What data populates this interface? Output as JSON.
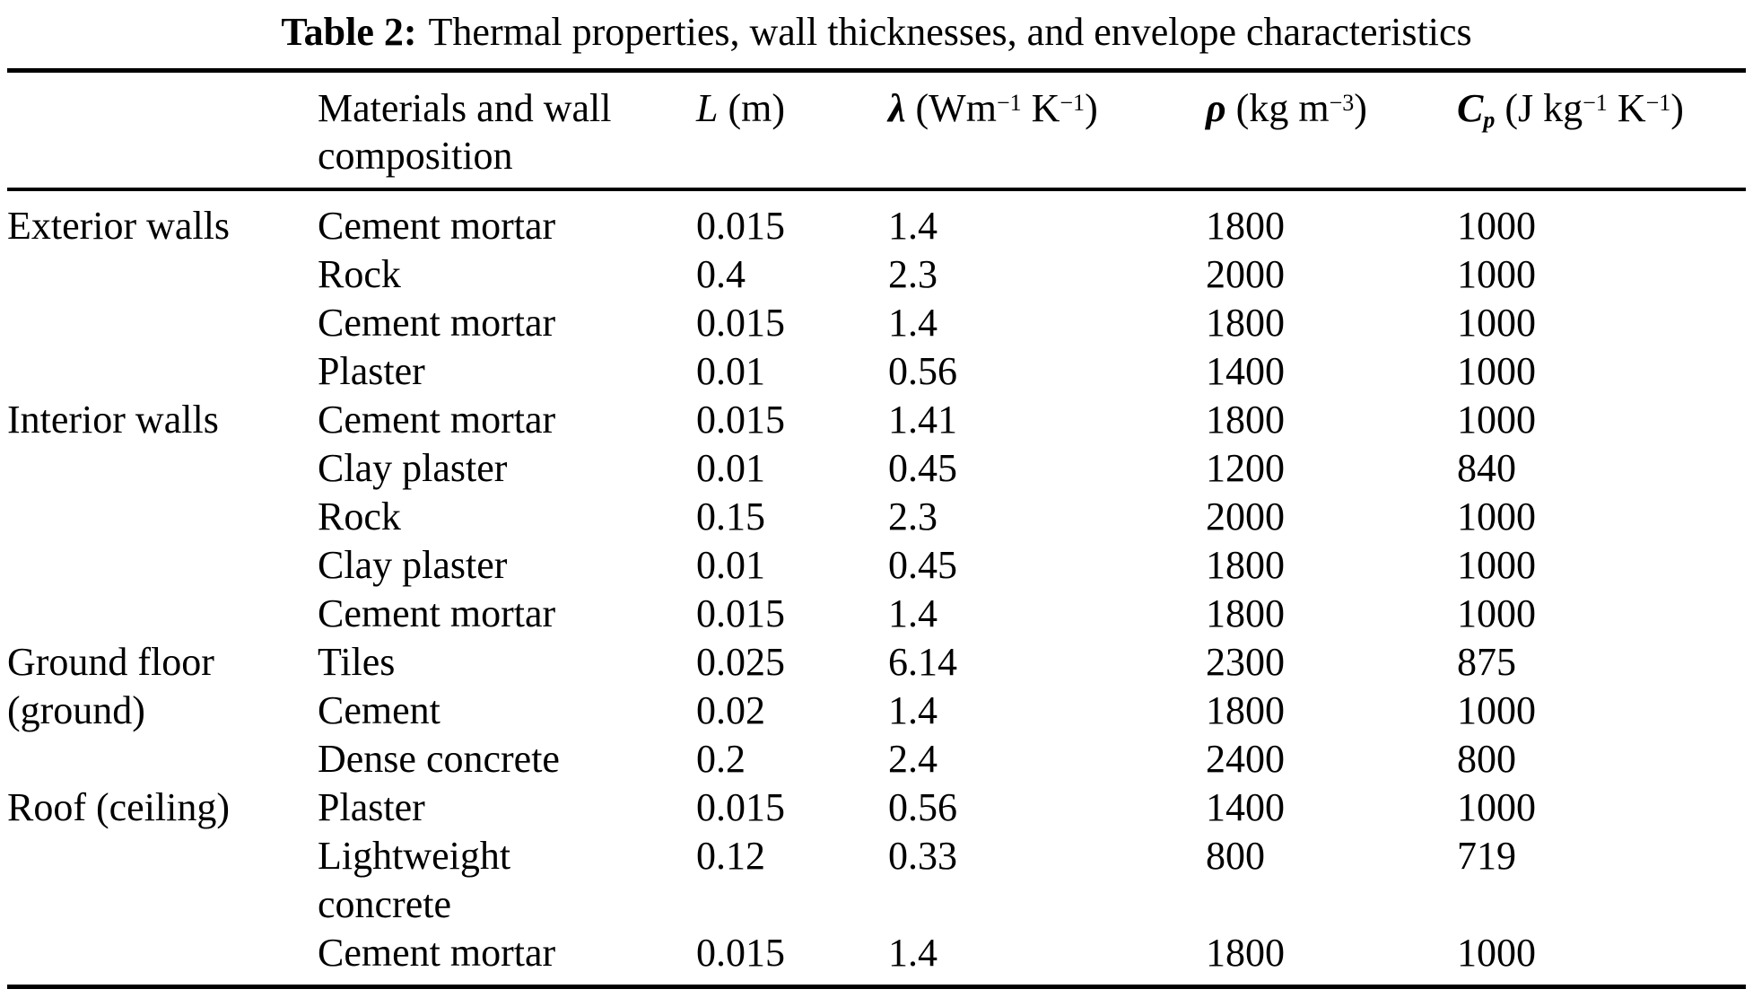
{
  "colors": {
    "ink": "#000000",
    "paper": "#ffffff"
  },
  "caption": {
    "label": "Table 2:",
    "text": "Thermal properties, wall thicknesses, and envelope characteristics"
  },
  "table": {
    "columns": [
      {
        "id": "category",
        "lines": []
      },
      {
        "id": "material",
        "lines": [
          "Materials and wall",
          "composition"
        ]
      },
      {
        "id": "thickness",
        "segments": [
          {
            "t": "L",
            "s": "i"
          },
          {
            "t": " (m)",
            "s": "n"
          }
        ]
      },
      {
        "id": "conductivity",
        "segments": [
          {
            "t": "λ",
            "s": "bi"
          },
          {
            "t": " (Wm",
            "s": "n"
          },
          {
            "t": "−1",
            "s": "sup"
          },
          {
            "t": " K",
            "s": "n"
          },
          {
            "t": "−1",
            "s": "sup"
          },
          {
            "t": ")",
            "s": "n"
          }
        ]
      },
      {
        "id": "density",
        "segments": [
          {
            "t": "ρ",
            "s": "bi"
          },
          {
            "t": " (kg m",
            "s": "n"
          },
          {
            "t": "−3",
            "s": "sup"
          },
          {
            "t": ")",
            "s": "n"
          }
        ]
      },
      {
        "id": "heat-capacity",
        "segments": [
          {
            "t": "C",
            "s": "bi"
          },
          {
            "t": "p",
            "s": "sub"
          },
          {
            "t": " (J kg",
            "s": "n"
          },
          {
            "t": "−1",
            "s": "sup"
          },
          {
            "t": " K",
            "s": "n"
          },
          {
            "t": "−1",
            "s": "sup"
          },
          {
            "t": ")",
            "s": "n"
          }
        ]
      }
    ],
    "rows": [
      [
        "Exterior walls",
        "Cement mortar",
        "0.015",
        "1.4",
        "1800",
        "1000"
      ],
      [
        "",
        "Rock",
        "0.4",
        "2.3",
        "2000",
        "1000"
      ],
      [
        "",
        "Cement mortar",
        "0.015",
        "1.4",
        "1800",
        "1000"
      ],
      [
        "",
        "Plaster",
        "0.01",
        "0.56",
        "1400",
        "1000"
      ],
      [
        "Interior walls",
        "Cement mortar",
        "0.015",
        "1.41",
        "1800",
        "1000"
      ],
      [
        "",
        "Clay plaster",
        "0.01",
        "0.45",
        "1200",
        "840"
      ],
      [
        "",
        "Rock",
        "0.15",
        "2.3",
        "2000",
        "1000"
      ],
      [
        "",
        "Clay plaster",
        "0.01",
        "0.45",
        "1800",
        "1000"
      ],
      [
        "",
        "Cement mortar",
        "0.015",
        "1.4",
        "1800",
        "1000"
      ],
      [
        "Ground floor",
        "Tiles",
        "0.025",
        "6.14",
        "2300",
        "875"
      ],
      [
        "(ground)",
        "Cement",
        "0.02",
        "1.4",
        "1800",
        "1000"
      ],
      [
        "",
        "Dense concrete",
        "0.2",
        "2.4",
        "2400",
        "800"
      ],
      [
        "Roof (ceiling)",
        "Plaster",
        "0.015",
        "0.56",
        "1400",
        "1000"
      ],
      [
        "",
        "Lightweight",
        "0.12",
        "0.33",
        "800",
        "719"
      ],
      [
        "",
        "concrete",
        "",
        "",
        "",
        ""
      ],
      [
        "",
        "Cement mortar",
        "0.015",
        "1.4",
        "1800",
        "1000"
      ]
    ]
  }
}
